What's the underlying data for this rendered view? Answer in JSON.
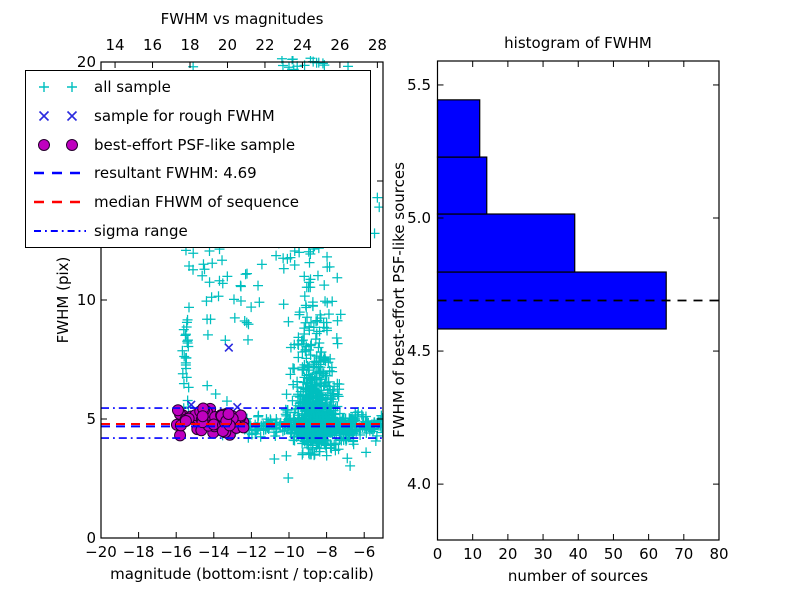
{
  "figure": {
    "background": "#ffffff"
  },
  "chart_data": [
    {
      "type": "scatter",
      "title": "FWHM vs magnitudes",
      "xlabel": "magnitude (bottom:isnt / top:calib)",
      "ylabel": "FWHM (pix)",
      "xlim": [
        -20,
        -5
      ],
      "ylim": [
        0,
        20
      ],
      "x_ticks": [
        -20,
        -18,
        -16,
        -14,
        -12,
        -10,
        -8,
        -6
      ],
      "x_tick_labels": [
        "−20",
        "−18",
        "−16",
        "−14",
        "−12",
        "−10",
        "−8",
        "−6"
      ],
      "y_ticks": [
        0,
        5,
        10,
        15,
        20
      ],
      "y_tick_labels": [
        "0",
        "5",
        "10",
        "15",
        "20"
      ],
      "top_axis": {
        "lim": [
          13.25,
          28.3
        ],
        "ticks": [
          14,
          16,
          18,
          20,
          22,
          24,
          26,
          28
        ],
        "tick_labels": [
          "14",
          "16",
          "18",
          "20",
          "22",
          "24",
          "26",
          "28"
        ]
      },
      "grid": false,
      "legend_position": "upper left",
      "legend": [
        {
          "label": "all sample",
          "marker": "plus",
          "color": "#00bfbf"
        },
        {
          "label": "sample for rough FWHM",
          "marker": "x",
          "color": "#2b2bdf"
        },
        {
          "label": "best-effort PSF-like sample",
          "marker": "circle",
          "color": "#bf00bf",
          "edge": "#26002e"
        },
        {
          "label": "resultant FWHM: 4.69",
          "marker": "dashed",
          "color": "#0000ff"
        },
        {
          "label": "median FHWM of sequence",
          "marker": "dashed",
          "color": "#ff0000"
        },
        {
          "label": "sigma range",
          "marker": "dashdot",
          "color": "#0000ff"
        }
      ],
      "hlines": [
        {
          "name": "resultant FWHM",
          "y": 4.69,
          "color": "#0000ff",
          "style": "dashed",
          "width": 2
        },
        {
          "name": "median FHWM of sequence",
          "y": 4.79,
          "color": "#ff0000",
          "style": "dashed",
          "width": 2
        },
        {
          "name": "sigma range upper",
          "y": 5.46,
          "color": "#0000ff",
          "style": "dashdot",
          "width": 1.6
        },
        {
          "name": "sigma range lower",
          "y": 4.2,
          "color": "#0000ff",
          "style": "dashdot",
          "width": 1.6
        }
      ],
      "series": [
        {
          "name": "all sample",
          "marker": "plus",
          "color": "#00bfbf",
          "size": 10,
          "clusters": [
            {
              "kind": "gauss",
              "n": 380,
              "cx": -8.6,
              "sx": 0.55,
              "cy": 5.3,
              "sy": 1.05,
              "ylo": 3.45,
              "yhi": 9.2
            },
            {
              "kind": "gauss",
              "n": 160,
              "cx": -8.4,
              "sx": 0.8,
              "cy": 4.75,
              "sy": 0.4,
              "ylo": 3.9,
              "yhi": 5.6
            },
            {
              "kind": "gauss",
              "n": 90,
              "cx": -8.75,
              "sx": 0.6,
              "cy": 8.0,
              "sy": 1.3,
              "ylo": 6.0,
              "yhi": 11.0
            },
            {
              "kind": "gauss",
              "n": 50,
              "cx": -8.8,
              "sx": 0.65,
              "cy": 13.0,
              "sy": 2.2,
              "ylo": 10.5,
              "yhi": 19.3
            },
            {
              "kind": "gauss",
              "n": 16,
              "cx": -9.3,
              "sx": 0.9,
              "cy": 19.9,
              "sy": 0.25,
              "ylo": 19.45,
              "yhi": 20.4
            },
            {
              "kind": "uniform",
              "n": 24,
              "xlo": -15.7,
              "xhi": -7.6,
              "ylo": 10.8,
              "yhi": 12.3
            },
            {
              "kind": "uniform",
              "n": 22,
              "xlo": -15.3,
              "xhi": -11.5,
              "ylo": 8.3,
              "yhi": 11.3
            },
            {
              "kind": "gauss",
              "n": 24,
              "cx": -15.45,
              "sx": 0.07,
              "cy": 7.6,
              "sy": 1.3,
              "ylo": 5.5,
              "yhi": 10.0
            },
            {
              "kind": "band",
              "n": 250,
              "xlo": -12.3,
              "xhi": -5.02,
              "cy": 4.72,
              "sy": 0.22,
              "ylo": 3.75,
              "yhi": 5.5
            },
            {
              "kind": "band",
              "n": 60,
              "xlo": -14.0,
              "xhi": -12.3,
              "cy": 4.78,
              "sy": 0.2,
              "ylo": 4.3,
              "yhi": 5.45
            },
            {
              "kind": "band",
              "n": 80,
              "xlo": -9.6,
              "xhi": -6.4,
              "cy": 4.5,
              "sy": 0.35,
              "ylo": 3.6,
              "yhi": 5.2
            }
          ],
          "points": [
            [
              -10.78,
              3.32
            ],
            [
              -10.14,
              3.45
            ],
            [
              -10.04,
              2.52
            ],
            [
              -15.1,
              19.8
            ],
            [
              -5.3,
              14.3
            ],
            [
              -5.45,
              12.8
            ],
            [
              -5.2,
              13.9
            ],
            [
              -6.9,
              3.35
            ],
            [
              -5.9,
              3.6
            ],
            [
              -15.6,
              5.45
            ],
            [
              -15.35,
              5.5
            ],
            [
              -14.35,
              6.4
            ],
            [
              -13.9,
              6.05
            ],
            [
              -13.3,
              5.75
            ],
            [
              -6.75,
              3.03
            ]
          ]
        },
        {
          "name": "sample for rough FWHM",
          "marker": "x",
          "color": "#2b2bdf",
          "size": 9,
          "clusters": [],
          "points": [
            [
              -13.2,
              8.0
            ],
            [
              -15.2,
              5.6
            ],
            [
              -12.75,
              5.5
            ]
          ]
        },
        {
          "name": "best-effort PSF-like sample",
          "marker": "circle",
          "color": "#bf00bf",
          "edge": "#26002e",
          "size": 11,
          "clusters": [
            {
              "kind": "gauss",
              "n": 42,
              "cx": -14.7,
              "sx": 0.85,
              "cy": 4.95,
              "sy": 0.27,
              "ylo": 4.3,
              "yhi": 5.5,
              "xlo": -16.35,
              "xhi": -12.35
            },
            {
              "kind": "gauss",
              "n": 33,
              "cx": -13.35,
              "sx": 0.5,
              "cy": 4.85,
              "sy": 0.28,
              "ylo": 4.3,
              "yhi": 5.5,
              "xlo": -16.35,
              "xhi": -12.35
            }
          ],
          "points": []
        }
      ]
    },
    {
      "type": "histogram-horizontal",
      "title": "histogram of FWHM",
      "xlabel": "number of sources",
      "ylabel": "FWHM of best-effort PSF-like sources",
      "xlim": [
        0,
        80
      ],
      "ylim": [
        3.79,
        5.59
      ],
      "x_ticks": [
        0,
        10,
        20,
        30,
        40,
        50,
        60,
        70,
        80
      ],
      "x_tick_labels": [
        "0",
        "10",
        "20",
        "30",
        "40",
        "50",
        "60",
        "70",
        "80"
      ],
      "y_ticks": [
        4.0,
        4.5,
        5.0,
        5.5
      ],
      "y_tick_labels": [
        "4.0",
        "4.5",
        "5.0",
        "5.5"
      ],
      "bar_color": "#0000ff",
      "bar_edge_color": "#000000",
      "bins": [
        {
          "from": 4.583,
          "to": 4.797,
          "count": 65
        },
        {
          "from": 4.797,
          "to": 5.015,
          "count": 39
        },
        {
          "from": 5.015,
          "to": 5.229,
          "count": 14
        },
        {
          "from": 5.229,
          "to": 5.444,
          "count": 12
        }
      ],
      "dashed_line": {
        "y": 4.69,
        "color": "#000000",
        "style": "dashed"
      }
    }
  ]
}
